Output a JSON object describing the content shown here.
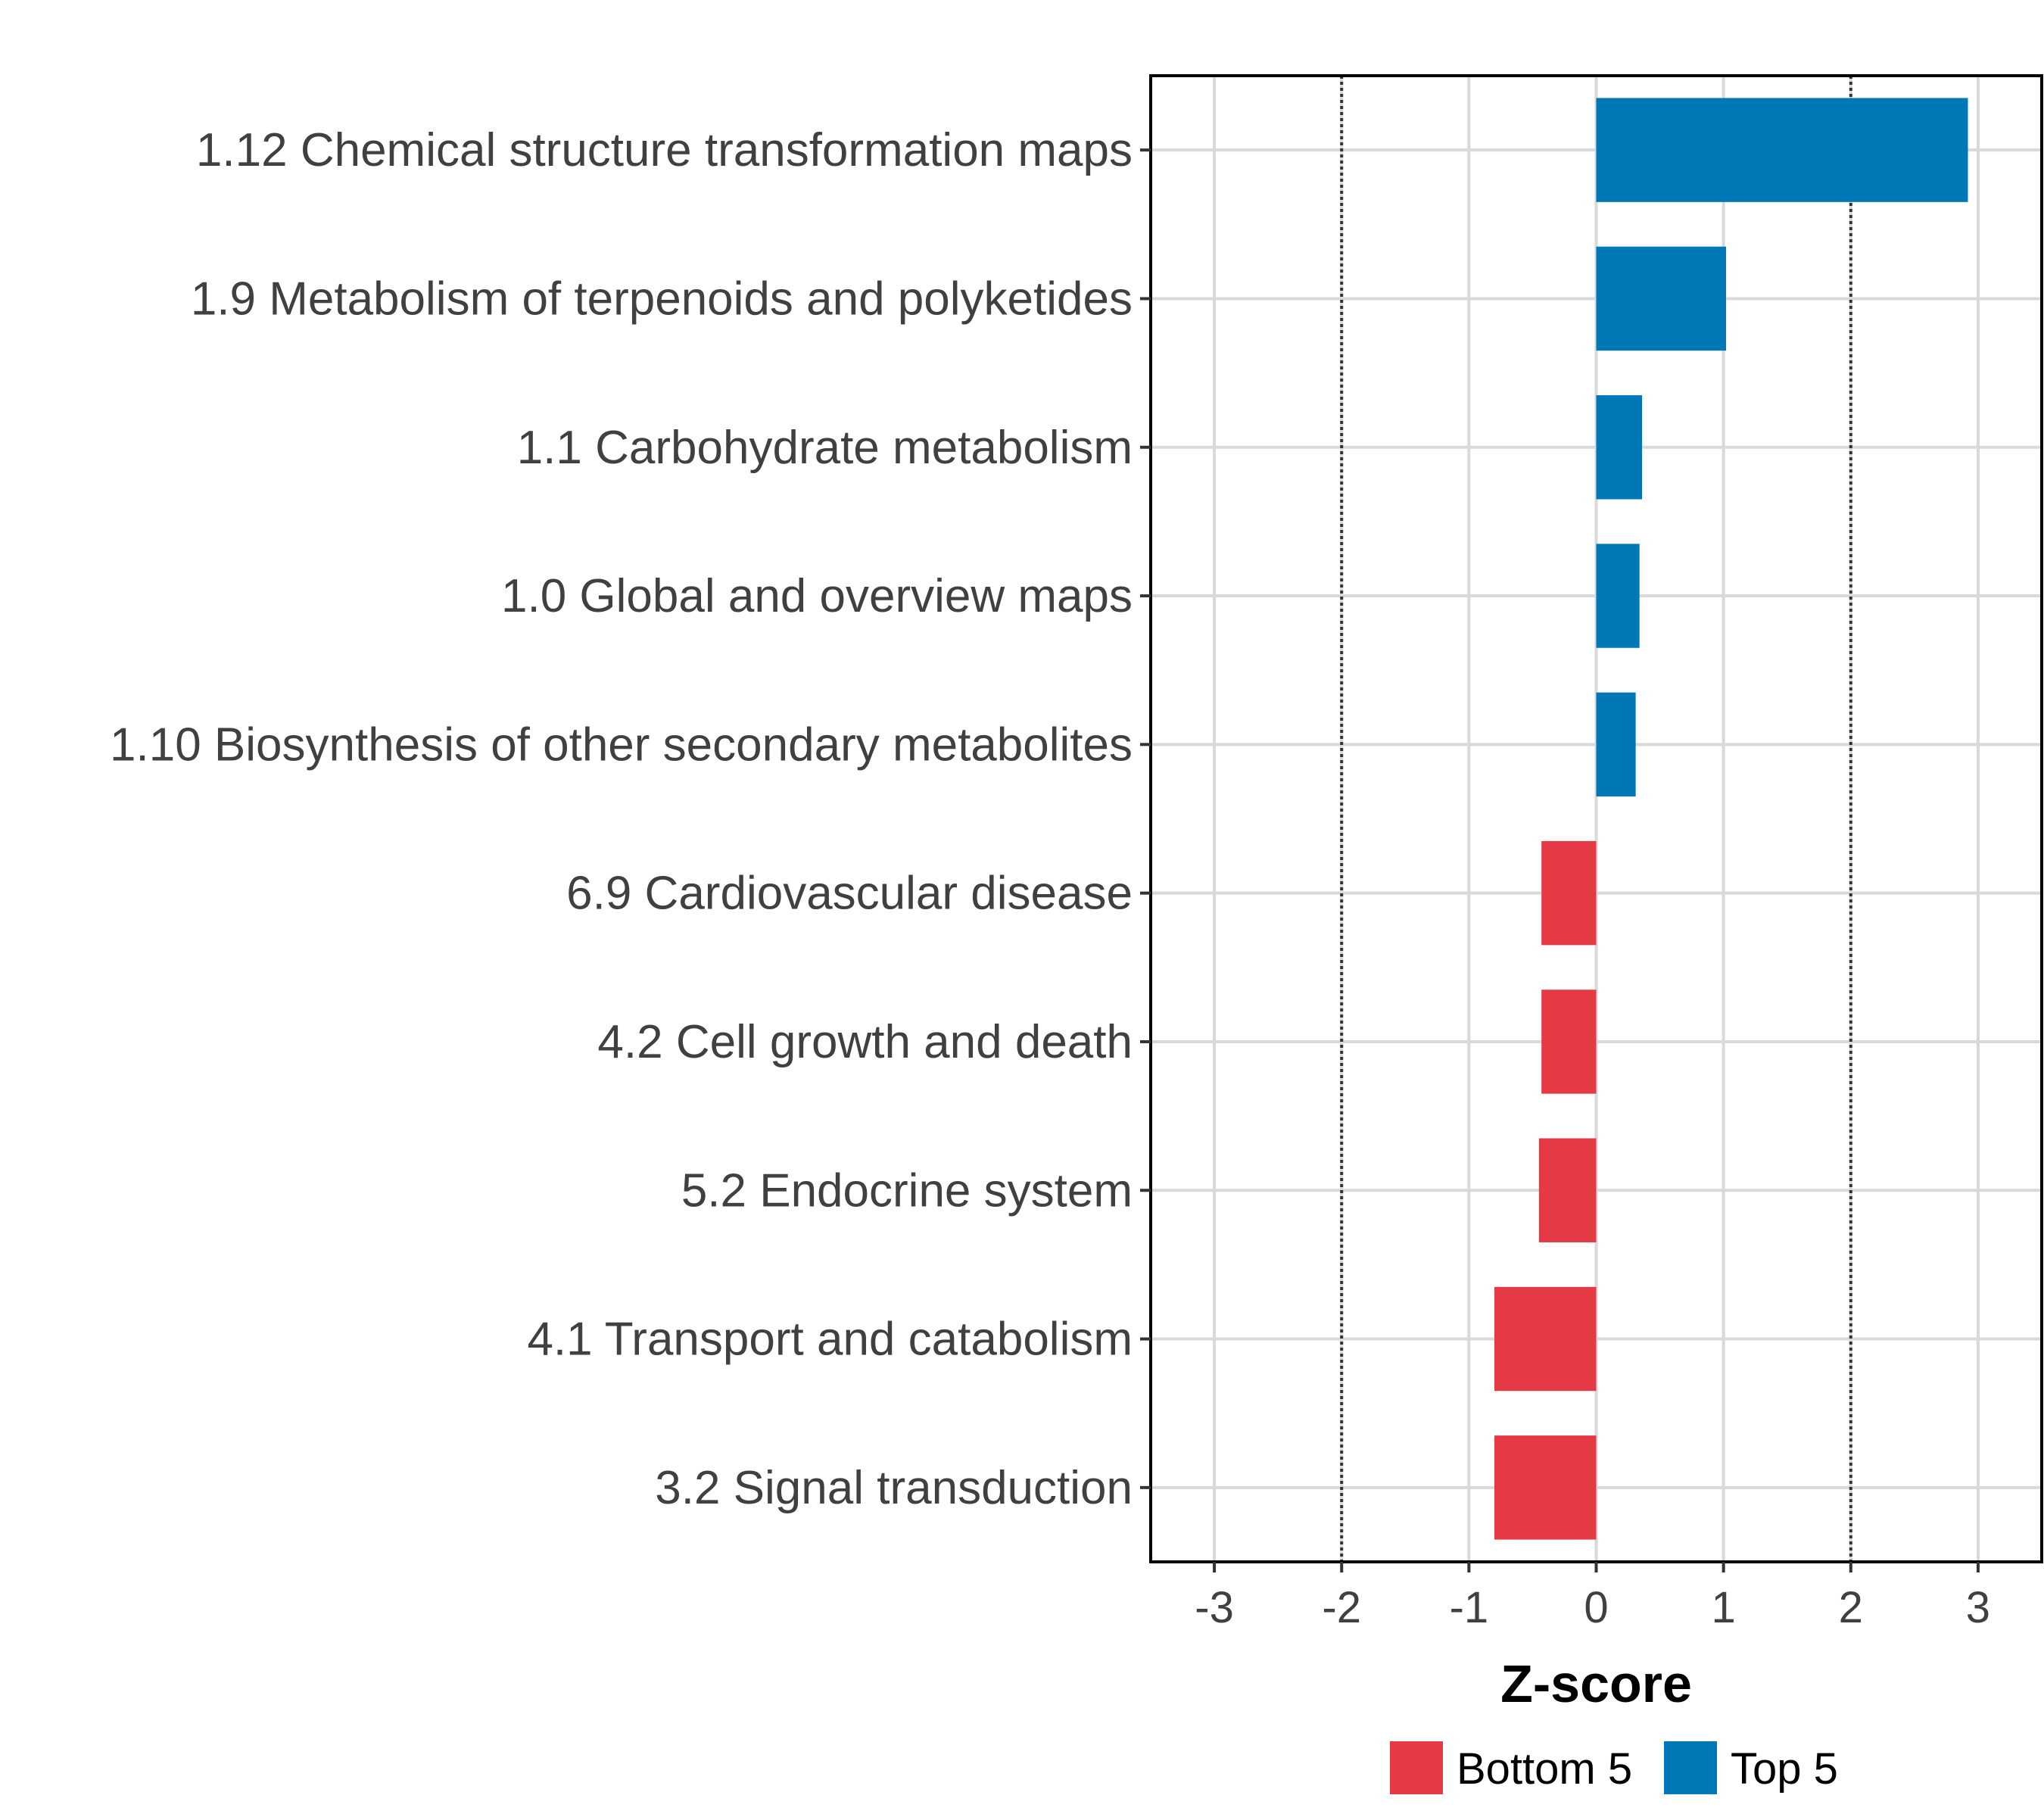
{
  "chart_data": {
    "type": "bar",
    "orientation": "horizontal",
    "xlabel": "Z-score",
    "ylabel": "",
    "xlim": [
      -3.5,
      3.5
    ],
    "xticks": [
      -3,
      -2,
      -1,
      0,
      1,
      2,
      3
    ],
    "reference_lines": [
      -2,
      2
    ],
    "grid": true,
    "legend_position": "bottom",
    "categories": [
      "1.12 Chemical structure transformation maps",
      "1.9 Metabolism of terpenoids and polyketides",
      "1.1 Carbohydrate metabolism",
      "1.0 Global and overview maps",
      "1.10 Biosynthesis of other secondary metabolites",
      "6.9 Cardiovascular disease",
      "4.2 Cell growth and death",
      "5.2 Endocrine system",
      "4.1 Transport and catabolism",
      "3.2 Signal transduction"
    ],
    "values": [
      2.92,
      1.02,
      0.36,
      0.34,
      0.31,
      -0.43,
      -0.43,
      -0.45,
      -0.8,
      -0.8
    ],
    "groups": [
      "Top 5",
      "Top 5",
      "Top 5",
      "Top 5",
      "Top 5",
      "Bottom 5",
      "Bottom 5",
      "Bottom 5",
      "Bottom 5",
      "Bottom 5"
    ],
    "legend": [
      {
        "name": "Bottom 5",
        "color": "#e63946"
      },
      {
        "name": "Top 5",
        "color": "#0077b6"
      }
    ]
  }
}
